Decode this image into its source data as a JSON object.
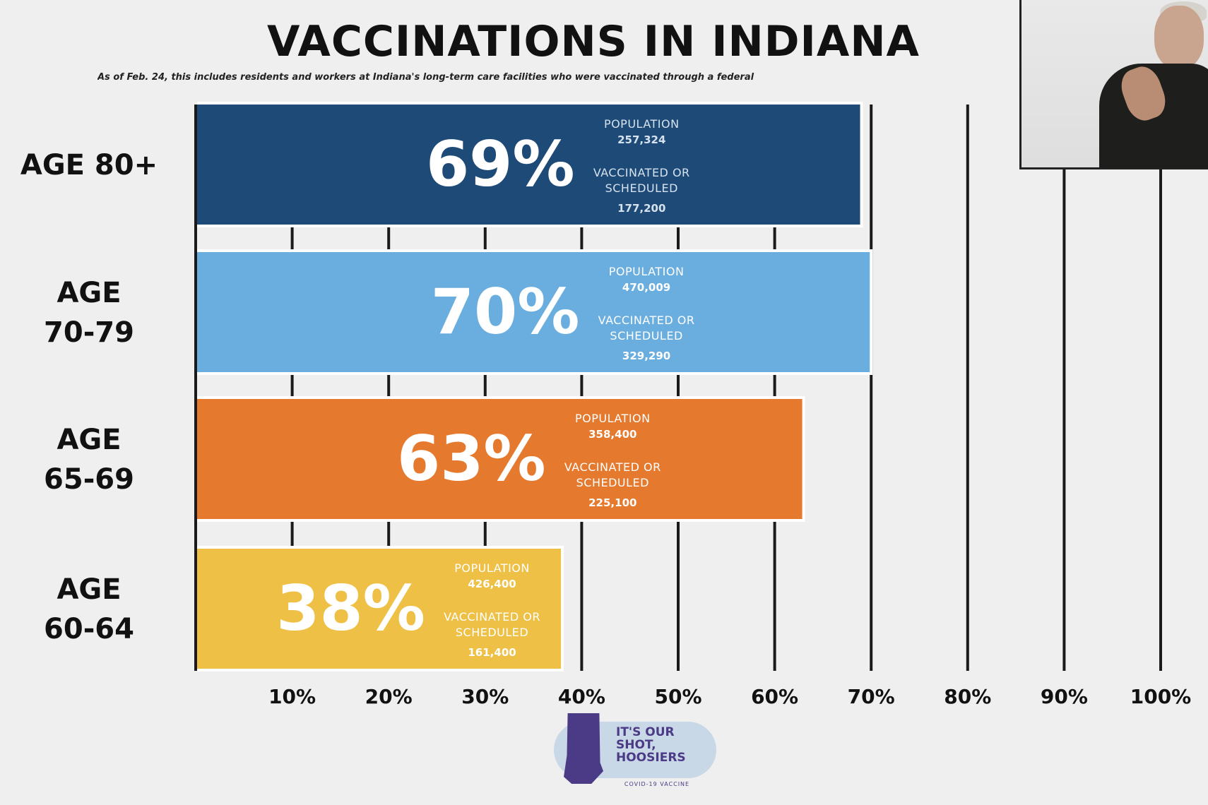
{
  "chart_data": {
    "type": "bar",
    "orientation": "horizontal",
    "title": "VACCINATIONS IN INDIANA",
    "subtitle": "As of Feb. 24, this includes residents and workers at Indiana's long-term care facilities who were vaccinated through a federal",
    "categories": [
      "AGE 80+",
      "AGE 70-79",
      "AGE 65-69",
      "AGE 60-64"
    ],
    "category_lines": [
      [
        "AGE 80+"
      ],
      [
        "AGE",
        "70-79"
      ],
      [
        "AGE",
        "65-69"
      ],
      [
        "AGE",
        "60-64"
      ]
    ],
    "values": [
      69,
      70,
      63,
      38
    ],
    "value_labels": [
      "69%",
      "70%",
      "63%",
      "38%"
    ],
    "population_label": "POPULATION",
    "vaccinated_label_lines": [
      "VACCINATED OR",
      "SCHEDULED"
    ],
    "populations": [
      "257,324",
      "470,009",
      "358,400",
      "426,400"
    ],
    "vaccinated_or_scheduled": [
      "177,200",
      "329,290",
      "225,100",
      "161,400"
    ],
    "colors": [
      "#1e4a78",
      "#6aaee0",
      "#e57a2e",
      "#eec045"
    ],
    "xlim": [
      0,
      100
    ],
    "xticks": [
      10,
      20,
      30,
      40,
      50,
      60,
      70,
      80,
      90,
      100
    ],
    "xtick_labels": [
      "10%",
      "20%",
      "30%",
      "40%",
      "50%",
      "60%",
      "70%",
      "80%",
      "90%",
      "100%"
    ],
    "grid": true,
    "legend": false
  },
  "logo": {
    "text": "IT'S OUR\nSHOT,\nHOOSIERS",
    "subtext": "COVID-19 VACCINE"
  },
  "overlay": {
    "webcam_icon": "person-webcam-icon"
  }
}
